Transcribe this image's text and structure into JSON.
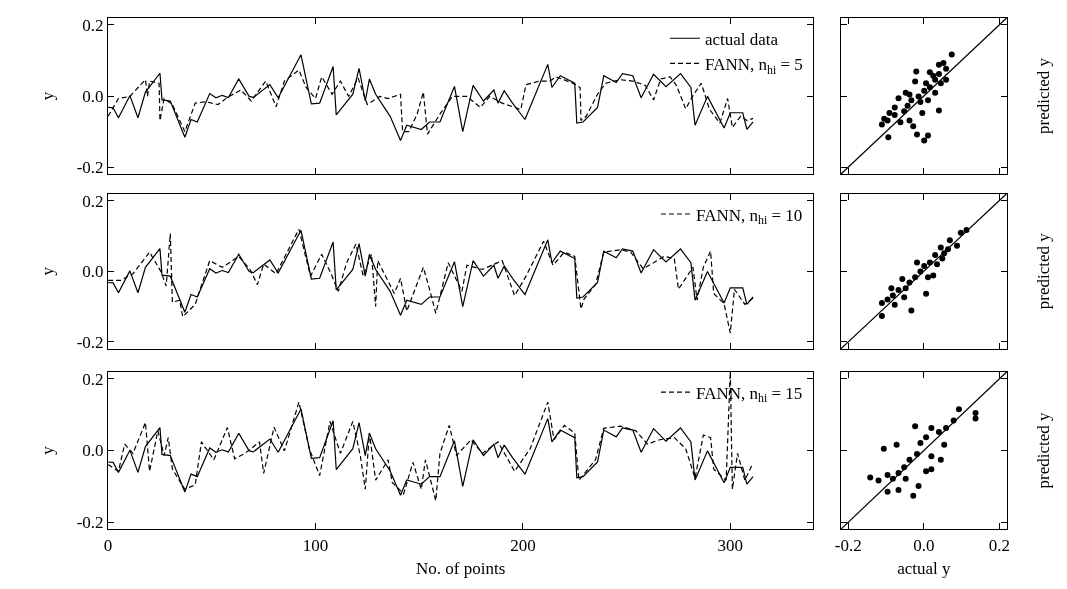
{
  "chart_data": [
    {
      "type": "line",
      "ylabel": "y",
      "xlim": [
        0,
        340
      ],
      "xticks": [
        {
          "value": 0,
          "label": null
        },
        {
          "value": 100,
          "label": null
        },
        {
          "value": 200,
          "label": null
        },
        {
          "value": 300,
          "label": null
        }
      ],
      "ylim": [
        -0.22,
        0.22
      ],
      "yticks": [
        {
          "value": 0.2,
          "label": "0.2"
        },
        {
          "value": 0,
          "label": "0.0"
        },
        {
          "value": -0.2,
          "label": "-0.2"
        }
      ],
      "tick_labels": "y",
      "legend": "top right",
      "series": [
        {
          "name": "actual data",
          "color": "#000000",
          "line_style": "solid",
          "x": [
            0,
            2.4,
            5,
            10.5,
            14.4,
            18,
            25,
            26,
            30,
            37,
            40,
            43,
            49,
            52,
            55,
            58,
            63,
            68,
            70,
            78,
            82,
            93,
            98,
            102,
            108.5,
            110,
            118,
            121,
            124,
            126,
            129,
            136,
            141,
            144,
            151,
            155,
            160,
            167,
            171,
            176,
            181,
            186,
            188,
            191,
            195,
            201,
            212,
            214,
            218,
            225,
            226,
            229,
            236,
            239,
            245,
            248,
            253,
            257,
            263,
            269,
            276,
            281,
            283,
            289,
            297,
            300,
            306,
            308,
            311
          ],
          "values": [
            -0.032,
            -0.033,
            -0.061,
            0.001,
            -0.061,
            0.011,
            0.064,
            -0.011,
            -0.014,
            -0.116,
            -0.066,
            -0.073,
            0.007,
            -0.005,
            0.002,
            -0.004,
            0.048,
            -0.001,
            -0.004,
            0.032,
            -0.005,
            0.116,
            -0.022,
            -0.02,
            0.083,
            -0.053,
            0.005,
            0.078,
            -0.014,
            0.048,
            0.005,
            -0.057,
            -0.125,
            -0.082,
            -0.094,
            -0.073,
            -0.073,
            0.027,
            -0.1,
            0.03,
            -0.014,
            0.017,
            -0.02,
            0.015,
            -0.02,
            -0.066,
            0.089,
            0.024,
            0.057,
            0.036,
            -0.076,
            -0.073,
            -0.032,
            0.057,
            0.038,
            0.063,
            0.057,
            -0.005,
            0.061,
            0.026,
            0.063,
            0.024,
            -0.082,
            -0.001,
            -0.09,
            -0.047,
            -0.047,
            -0.094,
            -0.073
          ]
        },
        {
          "name": "FANN, n$_{hi}$ = 5",
          "color": "#000000",
          "line_style": "dashed",
          "x": [
            0,
            5,
            10.5,
            18,
            19,
            20,
            24.6,
            25,
            27,
            31,
            37,
            42,
            47,
            53,
            57.5,
            64,
            69,
            76,
            81,
            85,
            92,
            95.5,
            100,
            103,
            108,
            112,
            116,
            120.5,
            125,
            131,
            135,
            141,
            142,
            145,
            149,
            152,
            154,
            160,
            166,
            173,
            179.5,
            184,
            190,
            199,
            201.5,
            208,
            213,
            216,
            224,
            227.6,
            228,
            230.5,
            236,
            240,
            247,
            253,
            259,
            263,
            266.5,
            271,
            274,
            278.5,
            282,
            286,
            290,
            295,
            298.7,
            301,
            305,
            308,
            311
          ],
          "values": [
            -0.057,
            -0.007,
            -0.001,
            0.046,
            -0.001,
            0.042,
            0.036,
            -0.069,
            -0.007,
            -0.024,
            -0.1,
            -0.02,
            -0.016,
            -0.024,
            -0.004,
            0.017,
            -0.014,
            0.042,
            -0.03,
            0.042,
            0.073,
            0.024,
            -0.007,
            0.054,
            0.005,
            0.042,
            -0.001,
            0.051,
            -0.024,
            -0.001,
            -0.007,
            0.005,
            -0.1,
            -0.1,
            -0.051,
            0.011,
            -0.107,
            -0.051,
            -0.001,
            -0.001,
            -0.032,
            -0.001,
            -0.02,
            -0.038,
            0.032,
            0.042,
            0.042,
            0.054,
            0.036,
            0.024,
            -0.069,
            -0.057,
            0.005,
            0.036,
            0.046,
            0.042,
            0.03,
            -0.011,
            0.048,
            0.054,
            0.03,
            -0.036,
            0.001,
            0.036,
            -0.038,
            -0.076,
            -0.007,
            -0.088,
            -0.057,
            -0.069,
            -0.063
          ]
        }
      ]
    },
    {
      "type": "scatter",
      "ylabel": "predicted y",
      "xlim": [
        -0.22,
        0.22
      ],
      "xticks": [
        {
          "value": -0.2,
          "label": null
        },
        {
          "value": 0,
          "label": null
        },
        {
          "value": 0.2,
          "label": null
        }
      ],
      "ylim": [
        -0.22,
        0.22
      ],
      "yticks": [
        {
          "value": -0.2,
          "label": null
        },
        {
          "value": 0,
          "label": null
        },
        {
          "value": 0.2,
          "label": null
        }
      ],
      "tick_labels": false,
      "marker": "circle",
      "series": [
        {
          "color": "#000000",
          "x": [
            0.074,
            0.052,
            0.04,
            0.03,
            0.059,
            0.045,
            0.016,
            0.001,
            -0.014,
            -0.02,
            -0.023,
            -0.038,
            0.011,
            -0.009,
            -0.043,
            -0.067,
            -0.052,
            -0.077,
            -0.091,
            -0.111,
            -0.096,
            -0.094,
            -0.062,
            -0.028,
            -0.018,
            0.001,
            0.011,
            -0.004,
            0.04,
            0.03,
            0.016,
            0.059,
            0.04,
            0.025,
            0.006,
            -0.033,
            -0.048,
            -0.077,
            -0.105,
            -0.038
          ],
          "values": [
            0.117,
            0.093,
            0.062,
            0.046,
            0.046,
            0.036,
            0.025,
            0.015,
            -0.001,
            0.069,
            0.041,
            0.004,
            -0.012,
            -0.017,
            -0.027,
            -0.006,
            -0.043,
            -0.053,
            -0.048,
            -0.08,
            -0.069,
            -0.116,
            -0.074,
            -0.085,
            -0.108,
            -0.125,
            -0.111,
            -0.048,
            -0.041,
            0.009,
            0.067,
            0.077,
            0.088,
            0.057,
            0.036,
            -0.012,
            0.009,
            -0.032,
            -0.064,
            -0.069
          ]
        },
        {
          "type": "line",
          "marker": "none",
          "color": "#000000",
          "line_style": "solid",
          "x": [
            -0.22,
            0.22
          ],
          "values": [
            -0.22,
            0.22
          ]
        }
      ]
    },
    {
      "type": "line",
      "ylabel": "y",
      "xlim": [
        0,
        340
      ],
      "xticks": [
        {
          "value": 0,
          "label": null
        },
        {
          "value": 100,
          "label": null
        },
        {
          "value": 200,
          "label": null
        },
        {
          "value": 300,
          "label": null
        }
      ],
      "ylim": [
        -0.22,
        0.22
      ],
      "yticks": [
        {
          "value": 0.2,
          "label": "0.2"
        },
        {
          "value": 0,
          "label": "0.0"
        },
        {
          "value": -0.2,
          "label": "-0.2"
        }
      ],
      "tick_labels": "y",
      "legend": "top right",
      "series": [
        {
          "color": "#000000",
          "line_style": "solid",
          "x": [
            0,
            2.4,
            5,
            10.5,
            14.4,
            18,
            25,
            26,
            30,
            37,
            40,
            43,
            49,
            52,
            55,
            58,
            63,
            68,
            70,
            78,
            82,
            93,
            98,
            102,
            108.5,
            110,
            118,
            121,
            124,
            126,
            129,
            136,
            141,
            144,
            151,
            155,
            160,
            167,
            171,
            176,
            181,
            186,
            188,
            191,
            195,
            201,
            212,
            214,
            218,
            225,
            226,
            229,
            236,
            239,
            245,
            248,
            253,
            257,
            263,
            269,
            276,
            281,
            283,
            289,
            297,
            300,
            306,
            308,
            311
          ],
          "values": [
            -0.032,
            -0.033,
            -0.061,
            0.001,
            -0.061,
            0.011,
            0.064,
            -0.011,
            -0.014,
            -0.116,
            -0.066,
            -0.073,
            0.007,
            -0.005,
            0.002,
            -0.004,
            0.048,
            -0.001,
            -0.004,
            0.032,
            -0.005,
            0.116,
            -0.022,
            -0.02,
            0.083,
            -0.053,
            0.005,
            0.078,
            -0.014,
            0.048,
            0.005,
            -0.057,
            -0.125,
            -0.082,
            -0.094,
            -0.073,
            -0.073,
            0.027,
            -0.1,
            0.03,
            -0.014,
            0.017,
            -0.02,
            0.015,
            -0.02,
            -0.066,
            0.089,
            0.024,
            0.057,
            0.036,
            -0.076,
            -0.073,
            -0.032,
            0.057,
            0.038,
            0.063,
            0.057,
            -0.005,
            0.061,
            0.026,
            0.063,
            0.024,
            -0.082,
            -0.001,
            -0.09,
            -0.047,
            -0.047,
            -0.094,
            -0.073
          ]
        },
        {
          "name": "FANN, n$_{hi}$ = 10",
          "color": "#000000",
          "line_style": "dashed",
          "x": [
            0,
            6,
            12,
            20,
            25.5,
            28,
            30,
            31,
            34.5,
            36,
            42,
            49,
            55,
            63,
            68.4,
            72,
            75,
            81,
            92,
            97.6,
            103,
            107.5,
            111,
            115,
            119.5,
            123,
            127,
            129,
            130,
            138,
            141,
            144,
            152,
            155,
            158,
            164,
            170.6,
            173,
            180.4,
            190,
            196,
            201.5,
            210,
            214.5,
            220,
            225,
            228,
            229.5,
            235,
            239,
            247,
            252,
            258,
            263,
            268,
            273,
            275,
            282,
            284,
            287,
            290.5,
            292,
            297,
            300,
            302,
            307,
            311
          ],
          "values": [
            -0.026,
            -0.026,
            -0.007,
            0.054,
            -0.001,
            -0.042,
            0.107,
            -0.088,
            -0.082,
            -0.129,
            -0.094,
            0.03,
            0.011,
            0.042,
            0.005,
            -0.038,
            0.02,
            -0.007,
            0.119,
            -0.014,
            0.048,
            -0.007,
            -0.057,
            0.024,
            0.077,
            -0.014,
            0.048,
            -0.1,
            0.03,
            -0.063,
            -0.02,
            -0.113,
            0.011,
            -0.051,
            -0.119,
            0.024,
            -0.057,
            0.017,
            0.005,
            0.03,
            -0.069,
            -0.014,
            0.085,
            0.017,
            0.054,
            0.042,
            -0.107,
            -0.079,
            -0.038,
            0.054,
            0.061,
            0.054,
            0.007,
            0.024,
            0.042,
            0.036,
            -0.051,
            0.011,
            -0.082,
            0.011,
            0.057,
            -0.063,
            -0.092,
            -0.175,
            -0.051,
            -0.094,
            -0.076
          ]
        }
      ]
    },
    {
      "type": "scatter",
      "ylabel": "predicted y",
      "xlim": [
        -0.22,
        0.22
      ],
      "xticks": [
        {
          "value": -0.2,
          "label": null
        },
        {
          "value": 0,
          "label": null
        },
        {
          "value": 0.2,
          "label": null
        }
      ],
      "ylim": [
        -0.22,
        0.22
      ],
      "yticks": [
        {
          "value": -0.2,
          "label": null
        },
        {
          "value": 0,
          "label": null
        },
        {
          "value": 0.2,
          "label": null
        }
      ],
      "tick_labels": false,
      "marker": "circle",
      "series": [
        {
          "color": "#000000",
          "x": [
            0.113,
            0.098,
            0.069,
            0.064,
            0.045,
            0.03,
            0.049,
            0.016,
            0.001,
            -0.009,
            0.011,
            -0.023,
            -0.038,
            -0.018,
            -0.048,
            -0.067,
            -0.082,
            -0.096,
            -0.111,
            -0.111,
            -0.077,
            -0.052,
            -0.033,
            0.006,
            0.025,
            0.035,
            0.054,
            0.088,
            -0.086,
            -0.057
          ],
          "values": [
            0.117,
            0.109,
            0.088,
            0.062,
            0.067,
            0.046,
            0.036,
            0.025,
            0.015,
            -0.001,
            -0.017,
            -0.017,
            -0.032,
            0.025,
            -0.048,
            -0.053,
            -0.069,
            -0.08,
            -0.09,
            -0.127,
            -0.095,
            -0.074,
            -0.111,
            -0.064,
            -0.012,
            0.02,
            0.051,
            0.072,
            -0.048,
            -0.022
          ]
        },
        {
          "type": "line",
          "marker": "none",
          "color": "#000000",
          "line_style": "solid",
          "x": [
            -0.22,
            0.22
          ],
          "values": [
            -0.22,
            0.22
          ]
        }
      ]
    },
    {
      "type": "line",
      "xlabel": "No. of points",
      "ylabel": "y",
      "xlim": [
        0,
        340
      ],
      "xticks": [
        0,
        100,
        200,
        300
      ],
      "ylim": [
        -0.22,
        0.22
      ],
      "yticks": [
        {
          "value": 0.2,
          "label": "0.2"
        },
        {
          "value": 0,
          "label": "0.0"
        },
        {
          "value": -0.2,
          "label": "-0.2"
        }
      ],
      "legend": "top right",
      "series": [
        {
          "color": "#000000",
          "line_style": "solid",
          "x": [
            0,
            2.4,
            5,
            10.5,
            14.4,
            18,
            25,
            26,
            30,
            37,
            40,
            43,
            49,
            52,
            55,
            58,
            63,
            68,
            70,
            78,
            82,
            93,
            98,
            102,
            108.5,
            110,
            118,
            121,
            124,
            126,
            129,
            136,
            141,
            144,
            151,
            155,
            160,
            167,
            171,
            176,
            181,
            186,
            188,
            191,
            195,
            201,
            212,
            214,
            218,
            225,
            226,
            229,
            236,
            239,
            245,
            248,
            253,
            257,
            263,
            269,
            276,
            281,
            283,
            289,
            297,
            300,
            306,
            308,
            311
          ],
          "values": [
            -0.032,
            -0.033,
            -0.061,
            0.001,
            -0.061,
            0.011,
            0.064,
            -0.011,
            -0.014,
            -0.116,
            -0.066,
            -0.073,
            0.007,
            -0.005,
            0.002,
            -0.004,
            0.048,
            -0.001,
            -0.004,
            0.032,
            -0.005,
            0.116,
            -0.022,
            -0.02,
            0.083,
            -0.053,
            0.005,
            0.078,
            -0.014,
            0.048,
            0.005,
            -0.057,
            -0.125,
            -0.082,
            -0.094,
            -0.073,
            -0.073,
            0.027,
            -0.1,
            0.03,
            -0.014,
            0.017,
            -0.02,
            0.015,
            -0.02,
            -0.066,
            0.089,
            0.024,
            0.057,
            0.036,
            -0.076,
            -0.073,
            -0.032,
            0.057,
            0.038,
            0.063,
            0.057,
            -0.005,
            0.061,
            0.026,
            0.063,
            0.024,
            -0.082,
            -0.001,
            -0.09,
            -0.047,
            -0.047,
            -0.094,
            -0.073
          ]
        },
        {
          "name": "FANN, n$_{hi}$ = 15",
          "color": "#000000",
          "line_style": "dashed",
          "x": [
            0,
            5,
            8,
            12,
            18,
            20,
            24,
            27,
            29,
            31,
            37,
            42,
            45,
            51,
            57.5,
            61,
            66,
            73,
            75,
            80,
            85,
            92,
            97,
            102,
            107,
            112,
            118,
            121.6,
            124,
            126,
            129,
            135,
            137,
            142.5,
            147,
            151,
            153,
            158,
            160,
            164.5,
            168,
            175,
            180.4,
            188,
            196,
            203.5,
            212,
            215,
            220,
            225,
            227,
            235,
            239,
            247,
            254.5,
            260,
            266,
            273,
            278.5,
            283,
            287,
            290.5,
            292,
            298,
            300,
            301,
            303.5,
            307,
            310.6
          ],
          "values": [
            -0.039,
            -0.058,
            0.018,
            -0.008,
            0.078,
            -0.058,
            0.055,
            -0.014,
            0.036,
            -0.052,
            -0.108,
            -0.096,
            0.024,
            -0.026,
            0.064,
            -0.023,
            -0.008,
            0.024,
            -0.064,
            0.065,
            -0.001,
            0.135,
            0.005,
            -0.07,
            0.081,
            -0.008,
            0.081,
            -0.014,
            -0.108,
            0.049,
            -0.083,
            -0.026,
            -0.089,
            -0.121,
            -0.033,
            -0.108,
            -0.026,
            -0.14,
            -0.008,
            0.07,
            -0.014,
            0.03,
            -0.008,
            0.024,
            -0.058,
            0.005,
            0.135,
            0.03,
            0.07,
            0.049,
            -0.083,
            -0.026,
            0.062,
            0.068,
            0.055,
            0.018,
            0.03,
            0.036,
            0.005,
            -0.077,
            0.043,
            0.036,
            -0.052,
            -0.083,
            0.22,
            -0.108,
            -0.008,
            -0.083,
            -0.039
          ]
        }
      ]
    },
    {
      "type": "scatter",
      "xlabel": "actual y",
      "ylabel": "predicted y",
      "xlim": [
        -0.22,
        0.22
      ],
      "xticks": [
        {
          "value": -0.2,
          "label": "-0.2"
        },
        {
          "value": 0,
          "label": "0.0"
        },
        {
          "value": 0.2,
          "label": "0.2"
        }
      ],
      "ylim": [
        -0.22,
        0.22
      ],
      "yticks": [
        {
          "value": -0.2,
          "label": null
        },
        {
          "value": 0,
          "label": null
        },
        {
          "value": 0.2,
          "label": null
        }
      ],
      "tick_labels": "x",
      "marker": "circle",
      "series": [
        {
          "color": "#000000",
          "x": [
            0.137,
            0.137,
            0.093,
            0.079,
            0.059,
            0.04,
            0.054,
            0.02,
            0.006,
            -0.009,
            -0.023,
            -0.072,
            -0.106,
            -0.018,
            -0.038,
            0.02,
            0.045,
            0.02,
            -0.052,
            -0.067,
            -0.082,
            -0.096,
            -0.12,
            -0.142,
            -0.096,
            -0.067,
            -0.028,
            -0.014,
            0.006,
            -0.048
          ],
          "values": [
            0.105,
            0.089,
            0.115,
            0.084,
            0.063,
            0.052,
            0.016,
            0.063,
            0.037,
            0.021,
            0.068,
            0.016,
            0.005,
            -0.01,
            -0.026,
            -0.016,
            -0.026,
            -0.052,
            -0.047,
            -0.063,
            -0.079,
            -0.068,
            -0.084,
            -0.075,
            -0.115,
            -0.11,
            -0.126,
            -0.099,
            -0.058,
            -0.079
          ]
        },
        {
          "type": "line",
          "marker": "none",
          "color": "#000000",
          "line_style": "solid",
          "x": [
            -0.22,
            0.22
          ],
          "values": [
            -0.22,
            0.22
          ]
        }
      ]
    }
  ]
}
